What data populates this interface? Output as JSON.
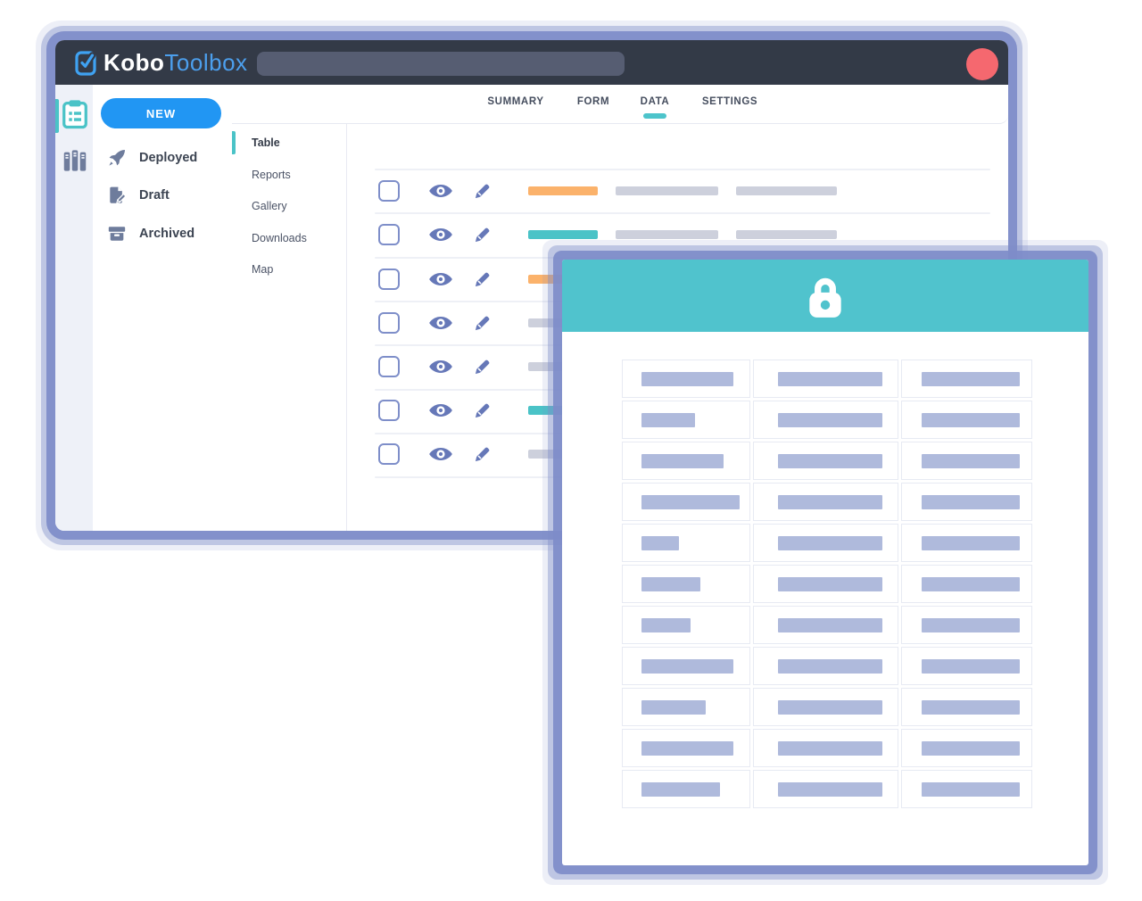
{
  "topbar": {
    "bg_color": "#333A47",
    "logo": {
      "icon": "clipboard-check-icon",
      "brand_bold": "Kobo",
      "brand_light": "Toolbox"
    },
    "search": {
      "value": "",
      "placeholder": ""
    },
    "avatar_color": "#F5686F"
  },
  "rail": {
    "items": [
      {
        "icon": "projects-clipboard-icon",
        "active": true
      },
      {
        "icon": "library-books-icon",
        "active": false
      }
    ]
  },
  "sidebar": {
    "new_button": {
      "label": "NEW",
      "color": "#2196F3"
    },
    "items": [
      {
        "icon": "rocket-icon",
        "label": "Deployed"
      },
      {
        "icon": "draft-document-icon",
        "label": "Draft"
      },
      {
        "icon": "archive-box-icon",
        "label": "Archived"
      }
    ]
  },
  "tabs": {
    "active_color": "#4DC4CB",
    "items": [
      {
        "label": "SUMMARY",
        "active": false
      },
      {
        "label": "FORM",
        "active": false
      },
      {
        "label": "DATA",
        "active": true
      },
      {
        "label": "SETTINGS",
        "active": false
      }
    ]
  },
  "subnav": {
    "items": [
      {
        "label": "Table",
        "active": true
      },
      {
        "label": "Reports",
        "active": false
      },
      {
        "label": "Gallery",
        "active": false
      },
      {
        "label": "Downloads",
        "active": false
      },
      {
        "label": "Map",
        "active": false
      }
    ]
  },
  "records": {
    "row_actions": [
      "checkbox",
      "eye-icon",
      "pencil-icon"
    ],
    "placeholder_color": "#CDD0DC",
    "tag_colors": {
      "orange": "#FBB26B",
      "teal": "#4AC3C7",
      "gray": "#CDD0DC"
    },
    "rows": [
      {
        "tag": "orange"
      },
      {
        "tag": "teal"
      },
      {
        "tag": "orange"
      },
      {
        "tag": "gray"
      },
      {
        "tag": "gray"
      },
      {
        "tag": "teal"
      },
      {
        "tag": "gray"
      }
    ]
  },
  "modal": {
    "header_color": "#50C3CD",
    "icon": "lock-icon",
    "table": {
      "columns": 3,
      "rows": 11,
      "bar_color": "#AFBADC",
      "col1_bar_widths": [
        103,
        60,
        92,
        110,
        42,
        66,
        55,
        103,
        72,
        103,
        88
      ],
      "col2_bar_width": 117,
      "col3_bar_width": 110
    }
  }
}
